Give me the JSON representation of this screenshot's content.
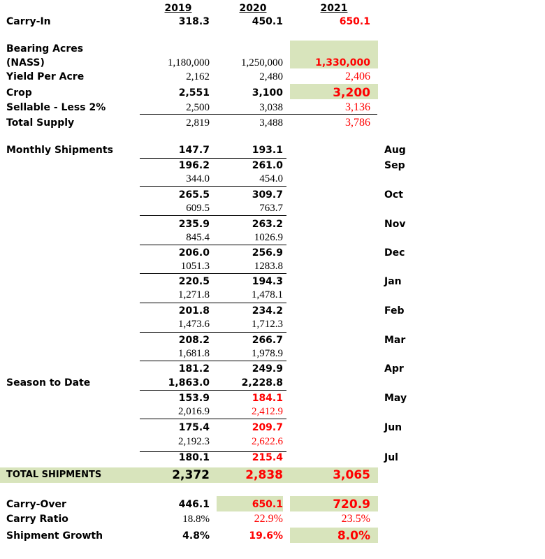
{
  "columns": [
    "2019",
    "2020",
    "2021"
  ],
  "supply": [
    {
      "label": "Carry-In",
      "values": [
        "318.3",
        "450.1",
        "650.1"
      ]
    },
    {
      "label": "Bearing Acres",
      "label_2": "(NASS)",
      "values": [
        "1,180,000",
        "1,250,000",
        "1,330,000"
      ]
    },
    {
      "label": "Yield Per Acre",
      "values": [
        "2,162",
        "2,480",
        "2,406"
      ]
    },
    {
      "label": "Crop",
      "values": [
        "2,551",
        "3,100",
        "3,200"
      ]
    },
    {
      "label": "Sellable - Less 2%",
      "values": [
        "2,500",
        "3,038",
        "3,136"
      ]
    },
    {
      "label": "Total Supply",
      "values": [
        "2,819",
        "3,488",
        "3,786"
      ]
    }
  ],
  "shipments": [
    {
      "label": "Monthly Shipments",
      "month": "Aug",
      "values": [
        "147.7",
        "193.1"
      ]
    },
    {
      "month": "Sep",
      "values": [
        "196.2",
        "261.0"
      ]
    },
    {
      "values": [
        "344.0",
        "454.0"
      ]
    },
    {
      "month": "Oct",
      "values": [
        "265.5",
        "309.7"
      ]
    },
    {
      "values": [
        "609.5",
        "763.7"
      ]
    },
    {
      "month": "Nov",
      "values": [
        "235.9",
        "263.2"
      ]
    },
    {
      "values": [
        "845.4",
        "1026.9"
      ]
    },
    {
      "month": "Dec",
      "values": [
        "206.0",
        "256.9"
      ]
    },
    {
      "values": [
        "1051.3",
        "1283.8"
      ]
    },
    {
      "month": "Jan",
      "values": [
        "220.5",
        "194.3"
      ]
    },
    {
      "values": [
        "1,271.8",
        "1,478.1"
      ]
    },
    {
      "month": "Feb",
      "values": [
        "201.8",
        "234.2"
      ]
    },
    {
      "values": [
        "1,473.6",
        "1,712.3"
      ]
    },
    {
      "month": "Mar",
      "values": [
        "208.2",
        "266.7"
      ]
    },
    {
      "values": [
        "1,681.8",
        "1,978.9"
      ]
    },
    {
      "month": "Apr",
      "values": [
        "181.2",
        "249.9"
      ]
    },
    {
      "label": "Season to Date",
      "values": [
        "1,863.0",
        "2,228.8"
      ]
    },
    {
      "month": "May",
      "values": [
        "153.9",
        "184.1"
      ]
    },
    {
      "values": [
        "2,016.9",
        "2,412.9"
      ]
    },
    {
      "month": "Jun",
      "values": [
        "175.4",
        "209.7"
      ]
    },
    {
      "values": [
        "2,192.3",
        "2,622.6"
      ]
    },
    {
      "month": "Jul",
      "values": [
        "180.1",
        "215.4"
      ]
    }
  ],
  "total_shipments": {
    "label": "TOTAL SHIPMENTS",
    "values": [
      "2,372",
      "2,838",
      "3,065"
    ]
  },
  "outcomes": [
    {
      "label": "Carry-Over",
      "values": [
        "446.1",
        "650.1",
        "720.9"
      ]
    },
    {
      "label": "Carry Ratio",
      "values": [
        "18.8%",
        "22.9%",
        "23.5%"
      ]
    },
    {
      "label": "Shipment Growth",
      "values": [
        "4.8%",
        "19.6%",
        "8.0%"
      ]
    }
  ]
}
